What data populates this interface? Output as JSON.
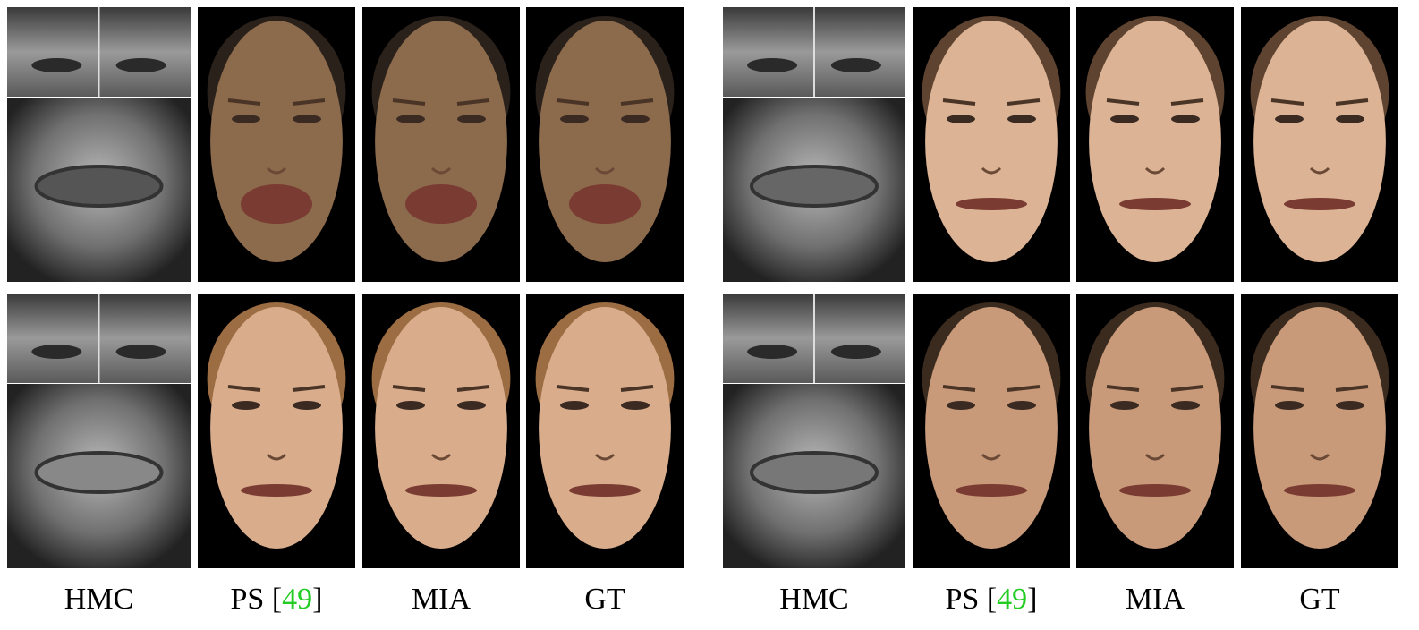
{
  "captions": {
    "left": [
      {
        "text": "HMC"
      },
      {
        "prefix": "PS [",
        "ref": "49",
        "suffix": "]"
      },
      {
        "text": "MIA"
      },
      {
        "text": "GT"
      }
    ],
    "right": [
      {
        "text": "HMC"
      },
      {
        "prefix": "PS [",
        "ref": "49",
        "suffix": "]"
      },
      {
        "text": "MIA"
      },
      {
        "text": "GT"
      }
    ]
  }
}
